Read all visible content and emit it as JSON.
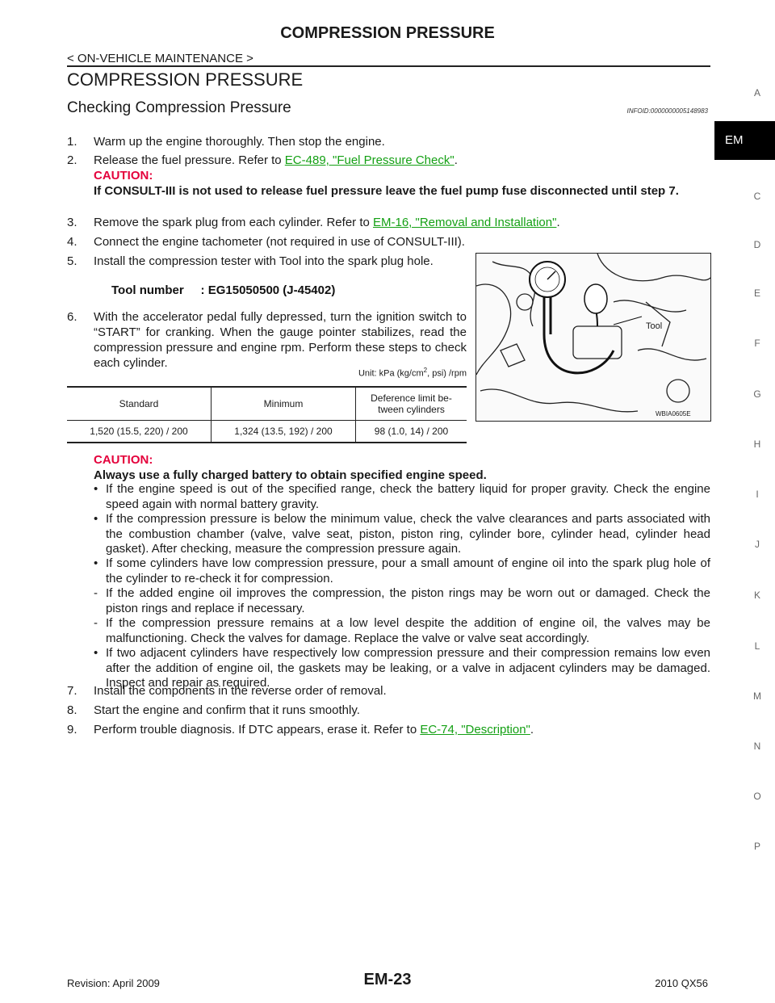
{
  "header": {
    "title": "COMPRESSION PRESSURE",
    "crumb": "< ON-VEHICLE MAINTENANCE >"
  },
  "section": {
    "title": "COMPRESSION PRESSURE",
    "subtitle": "Checking Compression Pressure",
    "info_id": "INFOID:0000000005148983"
  },
  "steps": {
    "s1": {
      "num": "1.",
      "text": "Warm up the engine thoroughly. Then stop the engine."
    },
    "s2": {
      "num": "2.",
      "pre": "Release the fuel pressure. Refer to ",
      "link": "EC-489, \"Fuel Pressure Check\"",
      "post": ".",
      "caution_label": "CAUTION:",
      "caution_text": "If CONSULT-III is not used to release fuel pressure leave the fuel pump fuse disconnected until step 7."
    },
    "s3": {
      "num": "3.",
      "pre": "Remove the spark plug from each cylinder. Refer to ",
      "link": "EM-16, \"Removal and Installation\"",
      "post": "."
    },
    "s4": {
      "num": "4.",
      "text": "Connect the engine tachometer (not required in use of CONSULT-III)."
    },
    "s5": {
      "num": "5.",
      "text": "Install the compression tester with Tool into the spark plug hole.",
      "tool": "Tool number     : EG15050500 (J-45402)"
    },
    "s6": {
      "num": "6.",
      "text": "With the accelerator pedal fully depressed, turn the ignition switch to “START” for cranking. When the gauge pointer stabilizes, read the compression pressure and engine rpm. Perform these steps to check each cylinder."
    },
    "unit_pre": "Unit: kPa (kg/cm",
    "unit_sup": "2",
    "unit_post": ", psi) /rpm",
    "table": {
      "headers": [
        "Standard",
        "Minimum",
        "Deference limit      be-\ntween cylinders"
      ],
      "row": [
        "1,520 (15.5, 220) / 200",
        "1,324 (13.5, 192) / 200",
        "98 (1.0, 14) / 200"
      ]
    },
    "caution2_label": "CAUTION:",
    "caution2_text": "Always use a fully charged battery to obtain specified engine speed.",
    "bullets": [
      {
        "mark": "•",
        "text": "If the engine speed is out of the specified range, check the battery liquid for proper gravity. Check the engine speed again with normal battery gravity."
      },
      {
        "mark": "•",
        "text": "If the compression pressure is below the minimum value, check the valve clearances and parts associated with the combustion chamber (valve, valve seat, piston, piston ring, cylinder bore, cylinder head, cylinder head gasket). After checking, measure the compression pressure again."
      },
      {
        "mark": "•",
        "text": "If some cylinders have low compression pressure, pour a small amount of engine oil into the spark plug hole of the cylinder to re-check it for compression."
      },
      {
        "mark": "-",
        "text": "If the added engine oil improves the compression, the piston rings may be worn out or damaged. Check the piston rings and replace if necessary."
      },
      {
        "mark": "-",
        "text": "If the compression pressure remains at a low level despite the addition of engine oil, the valves may be malfunctioning. Check the valves for damage. Replace the valve or valve seat accordingly."
      },
      {
        "mark": "•",
        "text": "If two adjacent cylinders have respectively low compression pressure and their compression remains low even after the addition of engine oil, the gaskets may be leaking, or a valve in adjacent cylinders may be damaged. Inspect and repair as required."
      }
    ],
    "s7": {
      "num": "7.",
      "text": "Install the components in the reverse order of removal."
    },
    "s8": {
      "num": "8.",
      "text": "Start the engine and confirm that it runs smoothly."
    },
    "s9": {
      "num": "9.",
      "pre": "Perform trouble diagnosis. If DTC appears, erase it. Refer to ",
      "link": "EC-74, \"Description\"",
      "post": "."
    }
  },
  "figure": {
    "label": "Tool",
    "code": "WBIA0605E"
  },
  "side_tabs": {
    "A": "A",
    "EM": "EM",
    "C": "C",
    "D": "D",
    "E": "E",
    "F": "F",
    "G": "G",
    "H": "H",
    "I": "I",
    "J": "J",
    "K": "K",
    "L": "L",
    "M": "M",
    "N": "N",
    "O": "O",
    "P": "P"
  },
  "footer": {
    "revision": "Revision: April 2009",
    "page": "EM-23",
    "model": "2010 QX56"
  },
  "colors": {
    "caution": "#e4003b",
    "link": "#14a014"
  }
}
